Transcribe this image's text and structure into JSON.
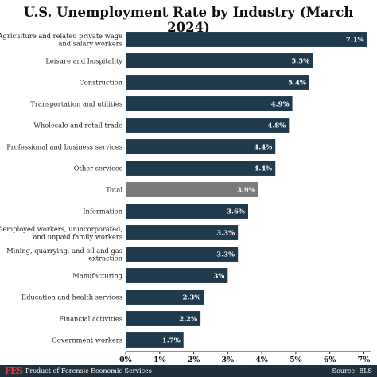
{
  "footer": {
    "logo": "FES",
    "left_text": "Product of Forensic Economic Services",
    "right_text": "Source: BLS"
  },
  "colors": {
    "bar": "#1f3a4d",
    "highlight_bar": "#7a7a7a",
    "footer_bg": "#1f2f3b",
    "logo": "#e03a3a"
  },
  "chart_data": {
    "type": "bar",
    "orientation": "horizontal",
    "title": "U.S. Unemployment Rate by Industry (March 2024)",
    "categories": [
      [
        "Agriculture and related private wage",
        "and salary workers"
      ],
      [
        "Leisure and hospitality"
      ],
      [
        "Construction"
      ],
      [
        "Transportation and utilities"
      ],
      [
        "Wholesale and retail trade"
      ],
      [
        "Professional and business services"
      ],
      [
        "Other services"
      ],
      [
        "Total"
      ],
      [
        "Information"
      ],
      [
        "Self-employed workers, unincorporated,",
        "and unpaid family workers"
      ],
      [
        "Mining, quarrying, and oil and gas",
        "extraction"
      ],
      [
        "Manufacturing"
      ],
      [
        "Education and health services"
      ],
      [
        "Financial activities"
      ],
      [
        "Government workers"
      ]
    ],
    "values": [
      7.1,
      5.5,
      5.4,
      4.9,
      4.8,
      4.4,
      4.4,
      3.9,
      3.6,
      3.3,
      3.3,
      3.0,
      2.3,
      2.2,
      1.7
    ],
    "value_labels": [
      "7.1%",
      "5.5%",
      "5.4%",
      "4.9%",
      "4.8%",
      "4.4%",
      "4.4%",
      "3.9%",
      "3.6%",
      "3.3%",
      "3.3%",
      "3%",
      "2.3%",
      "2.2%",
      "1.7%"
    ],
    "highlight_index": 7,
    "xlim": [
      0,
      7.2
    ],
    "xticks": [
      0,
      1,
      2,
      3,
      4,
      5,
      6,
      7
    ],
    "xtick_labels": [
      "0%",
      "1%",
      "2%",
      "3%",
      "4%",
      "5%",
      "6%",
      "7%"
    ],
    "grid": false
  }
}
